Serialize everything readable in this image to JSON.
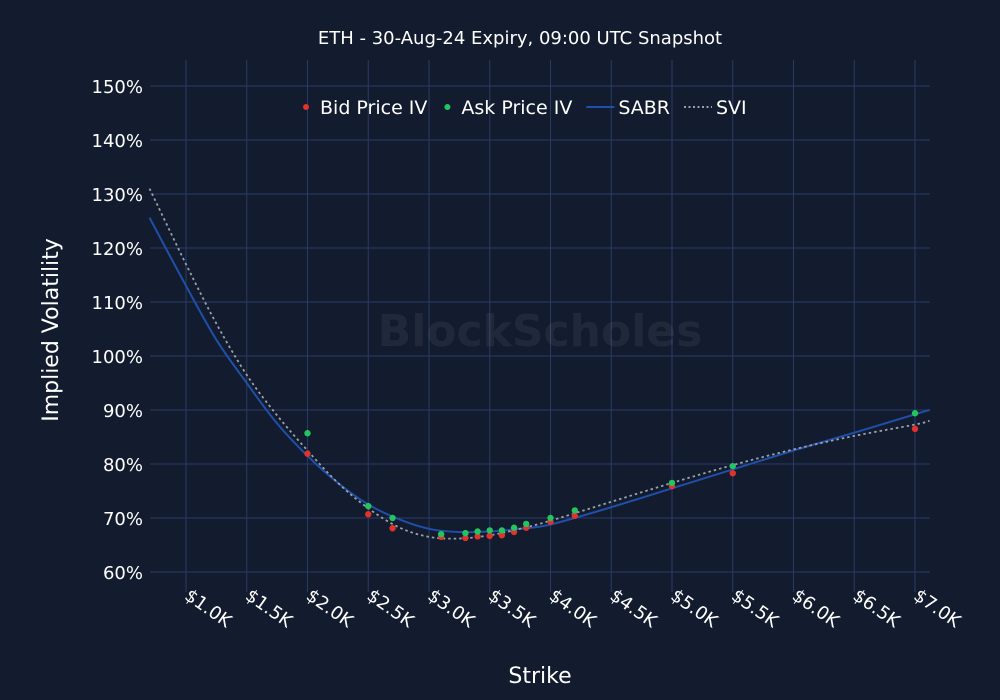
{
  "chart_data": {
    "type": "scatter",
    "title": "ETH - 30-Aug-24 Expiry, 09:00 UTC Snapshot",
    "xlabel": "Strike",
    "ylabel": "Implied Volatility",
    "watermark": "BlockScholes",
    "xlim": [
      700,
      7120
    ],
    "ylim": [
      55,
      155
    ],
    "x_ticks": [
      1000,
      1500,
      2000,
      2500,
      3000,
      3500,
      4000,
      4500,
      5000,
      5500,
      6000,
      6500,
      7000
    ],
    "x_tick_labels": [
      "$1.0K",
      "$1.5K",
      "$2.0K",
      "$2.5K",
      "$3.0K",
      "$3.5K",
      "$4.0K",
      "$4.5K",
      "$5.0K",
      "$5.5K",
      "$6.0K",
      "$6.5K",
      "$7.0K"
    ],
    "y_ticks": [
      60,
      70,
      80,
      90,
      100,
      110,
      120,
      130,
      140,
      150
    ],
    "y_tick_labels": [
      "60%",
      "70%",
      "80%",
      "90%",
      "100%",
      "110%",
      "120%",
      "130%",
      "140%",
      "150%"
    ],
    "grid": true,
    "legend_position": "top-center",
    "series": [
      {
        "name": "Bid Price IV",
        "kind": "markers",
        "color": "#e0332b",
        "x": [
          2000,
          2500,
          2700,
          3100,
          3300,
          3400,
          3500,
          3600,
          3700,
          3800,
          4000,
          4200,
          5000,
          5500,
          7000
        ],
        "y": [
          81.9,
          70.7,
          68.1,
          66.5,
          66.3,
          66.6,
          66.7,
          66.8,
          67.4,
          68.2,
          69.3,
          70.4,
          75.9,
          78.3,
          86.5
        ]
      },
      {
        "name": "Ask Price IV",
        "kind": "markers",
        "color": "#22c55e",
        "x": [
          2000,
          2500,
          2700,
          3100,
          3300,
          3400,
          3500,
          3600,
          3700,
          3800,
          4000,
          4200,
          5000,
          5500,
          7000
        ],
        "y": [
          85.7,
          72.2,
          70.0,
          67.0,
          67.2,
          67.5,
          67.7,
          67.7,
          68.2,
          68.9,
          70.0,
          71.4,
          76.5,
          79.6,
          89.4
        ]
      },
      {
        "name": "SABR",
        "kind": "line",
        "color": "#1f4fa8",
        "x": [
          700,
          1000,
          1250,
          1500,
          1750,
          2000,
          2250,
          2500,
          2750,
          3000,
          3250,
          3500,
          3750,
          4000,
          4500,
          5000,
          5500,
          6000,
          6500,
          7000,
          7120
        ],
        "y": [
          125.6,
          113,
          103,
          95,
          87.5,
          81.5,
          76.5,
          72.5,
          69.8,
          68,
          67.4,
          67.5,
          68,
          68.8,
          72,
          75.5,
          79,
          82.5,
          85.8,
          89.2,
          90
        ]
      },
      {
        "name": "SVI",
        "kind": "dotted",
        "color": "#9aa0aa",
        "x": [
          700,
          1000,
          1250,
          1500,
          1750,
          2000,
          2250,
          2500,
          2750,
          3000,
          3250,
          3500,
          3750,
          4000,
          4500,
          5000,
          5500,
          6000,
          6500,
          7000,
          7120
        ],
        "y": [
          131,
          117,
          106,
          96.5,
          89,
          82.5,
          76.5,
          71.8,
          68.3,
          66.5,
          66.2,
          66.8,
          68,
          69.5,
          73,
          76.5,
          79.8,
          82.7,
          85.2,
          87.3,
          88
        ]
      }
    ]
  }
}
